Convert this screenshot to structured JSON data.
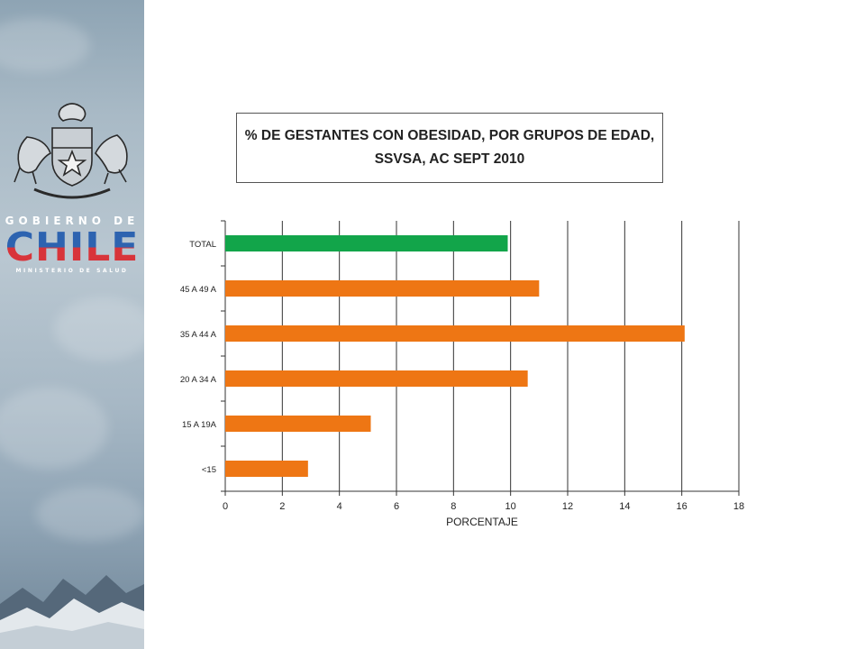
{
  "branding": {
    "gov_line": "GOBIERNO DE",
    "country": "CHILE",
    "ministry": "MINISTERIO DE SALUD"
  },
  "chart_data": {
    "type": "bar",
    "orientation": "horizontal",
    "title_line1": "% DE GESTANTES CON OBESIDAD,  POR GRUPOS DE EDAD,",
    "title_line2": "SSVSA, AC SEPT 2010",
    "xlabel": "PORCENTAJE",
    "ylabel": "",
    "xlim": [
      0,
      18
    ],
    "xticks": [
      "0",
      "2",
      "4",
      "6",
      "8",
      "10",
      "12",
      "14",
      "16",
      "18"
    ],
    "grid": true,
    "categories": [
      "TOTAL",
      "45 A 49 A",
      "35 A 44 A",
      "20 A 34 A",
      "15 A 19A",
      "<15"
    ],
    "values": [
      9.9,
      11.0,
      16.1,
      10.6,
      5.1,
      2.9
    ],
    "colors": [
      "#12a54a",
      "#ee7614",
      "#ee7614",
      "#ee7614",
      "#ee7614",
      "#ee7614"
    ]
  }
}
